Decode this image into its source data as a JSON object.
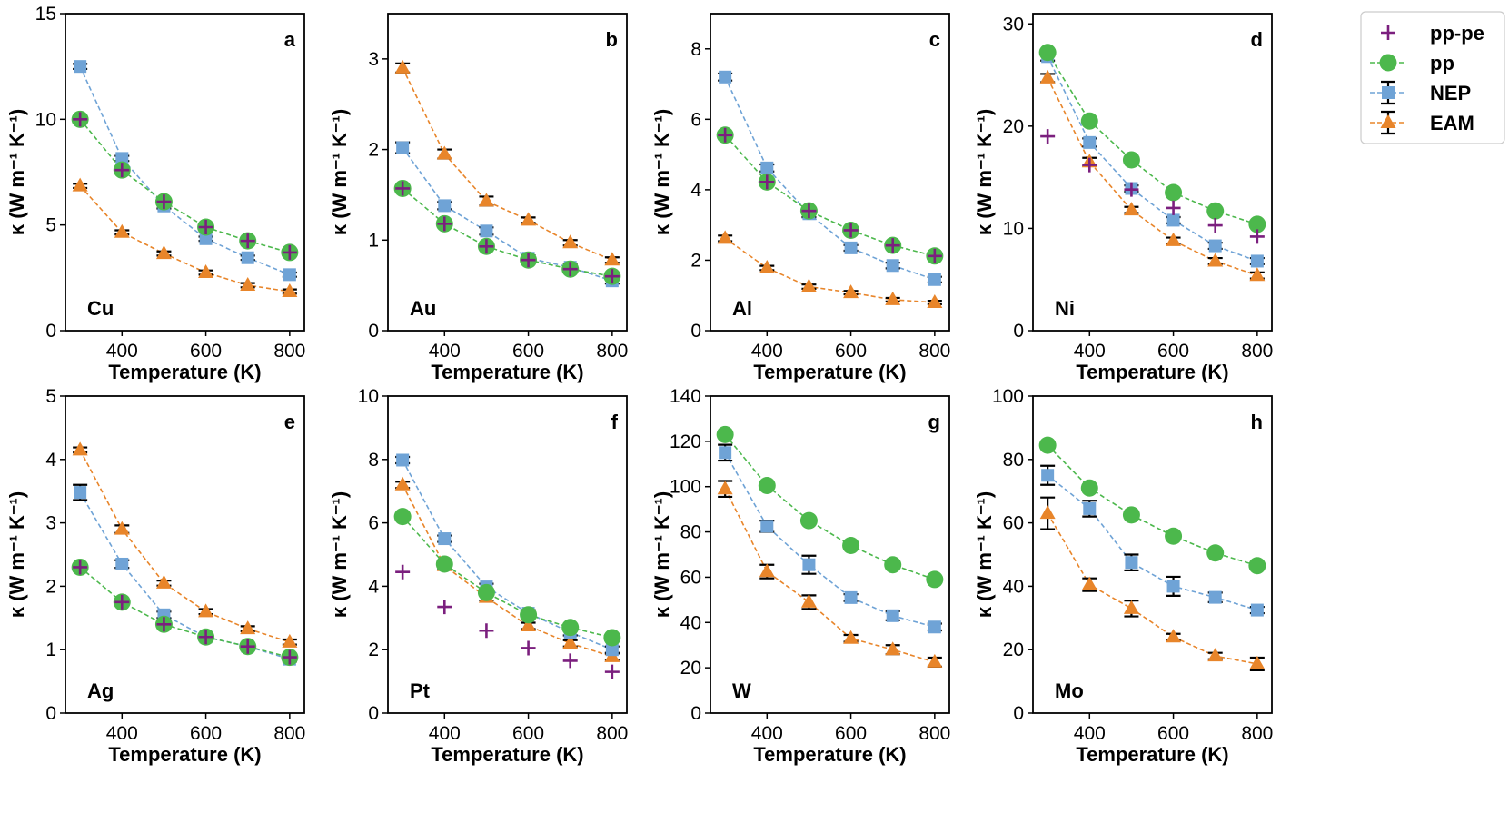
{
  "legend": [
    {
      "key": "pp-pe",
      "label": "pp-pe",
      "color": "#7b1f7e",
      "marker": "plus"
    },
    {
      "key": "pp",
      "label": "pp",
      "color": "#4cb84c",
      "marker": "circle"
    },
    {
      "key": "NEP",
      "label": "NEP",
      "color": "#6fa3d6",
      "marker": "square"
    },
    {
      "key": "EAM",
      "label": "EAM",
      "color": "#e8852a",
      "marker": "triangle"
    }
  ],
  "colors": {
    "pp": "#4cb84c",
    "NEP": "#6fa3d6",
    "EAM": "#e8852a",
    "pp-pe": "#7b1f7e"
  },
  "chart_data": [
    {
      "type": "line",
      "panel": "a",
      "element": "Cu",
      "x": [
        300,
        400,
        500,
        600,
        700,
        800
      ],
      "xlim": [
        265,
        835
      ],
      "ylim": [
        0,
        15
      ],
      "yticks": [
        0,
        5,
        10,
        15
      ],
      "xticks": [
        400,
        600,
        800
      ],
      "xticklabels": [
        "400",
        "600",
        "800"
      ],
      "yticklabels": [
        "0",
        "5",
        "10",
        "15"
      ],
      "xlabel": "Temperature (K)",
      "ylabel": "κ (W m⁻¹ K⁻¹)",
      "label_pos": "top-right",
      "series": [
        {
          "name": "pp-pe",
          "values": [
            10.0,
            7.6,
            6.1,
            4.9,
            4.25,
            3.7
          ]
        },
        {
          "name": "pp",
          "values": [
            10.0,
            7.6,
            6.1,
            4.9,
            4.25,
            3.7
          ]
        },
        {
          "name": "NEP",
          "values": [
            12.5,
            8.15,
            5.9,
            4.35,
            3.45,
            2.65
          ],
          "err": [
            0.12,
            0.12,
            0.12,
            0.1,
            0.1,
            0.1
          ]
        },
        {
          "name": "EAM",
          "values": [
            6.85,
            4.65,
            3.65,
            2.75,
            2.15,
            1.85
          ],
          "err": [
            0.1,
            0.1,
            0.1,
            0.1,
            0.1,
            0.1
          ]
        }
      ]
    },
    {
      "type": "line",
      "panel": "b",
      "element": "Au",
      "x": [
        300,
        400,
        500,
        600,
        700,
        800
      ],
      "xlim": [
        265,
        835
      ],
      "ylim": [
        0,
        3.5
      ],
      "yticks": [
        0,
        1,
        2,
        3
      ],
      "xticks": [
        400,
        600,
        800
      ],
      "xticklabels": [
        "400",
        "600",
        "800"
      ],
      "yticklabels": [
        "0",
        "1",
        "2",
        "3"
      ],
      "xlabel": "Temperature (K)",
      "ylabel": "κ (W m⁻¹ K⁻¹)",
      "label_pos": "top-right",
      "series": [
        {
          "name": "pp-pe",
          "values": [
            1.57,
            1.18,
            0.93,
            0.78,
            0.68,
            0.6
          ]
        },
        {
          "name": "pp",
          "values": [
            1.57,
            1.18,
            0.93,
            0.78,
            0.68,
            0.6
          ]
        },
        {
          "name": "NEP",
          "values": [
            2.02,
            1.38,
            1.1,
            0.8,
            0.7,
            0.55
          ],
          "err": [
            0.06,
            0.04,
            0.04,
            0.03,
            0.03,
            0.03
          ]
        },
        {
          "name": "EAM",
          "values": [
            2.9,
            1.95,
            1.43,
            1.22,
            0.97,
            0.78
          ],
          "err": [
            0.05,
            0.05,
            0.05,
            0.03,
            0.03,
            0.03
          ]
        }
      ]
    },
    {
      "type": "line",
      "panel": "c",
      "element": "Al",
      "x": [
        300,
        400,
        500,
        600,
        700,
        800
      ],
      "xlim": [
        265,
        835
      ],
      "ylim": [
        0,
        9
      ],
      "yticks": [
        0,
        2,
        4,
        6,
        8
      ],
      "xticks": [
        400,
        600,
        800
      ],
      "xticklabels": [
        "400",
        "600",
        "800"
      ],
      "yticklabels": [
        "0",
        "2",
        "4",
        "6",
        "8"
      ],
      "xlabel": "Temperature (K)",
      "ylabel": "κ (W m⁻¹ K⁻¹)",
      "label_pos": "top-right",
      "series": [
        {
          "name": "pp-pe",
          "values": [
            5.55,
            4.22,
            3.4,
            2.85,
            2.42,
            2.12
          ]
        },
        {
          "name": "pp",
          "values": [
            5.55,
            4.22,
            3.4,
            2.85,
            2.42,
            2.12
          ]
        },
        {
          "name": "NEP",
          "values": [
            7.2,
            4.62,
            3.32,
            2.35,
            1.85,
            1.45
          ],
          "err": [
            0.1,
            0.1,
            0.1,
            0.08,
            0.08,
            0.08
          ]
        },
        {
          "name": "EAM",
          "values": [
            2.62,
            1.78,
            1.25,
            1.08,
            0.88,
            0.8
          ],
          "err": [
            0.08,
            0.06,
            0.06,
            0.05,
            0.05,
            0.05
          ]
        }
      ]
    },
    {
      "type": "line",
      "panel": "d",
      "element": "Ni",
      "x": [
        300,
        400,
        500,
        600,
        700,
        800
      ],
      "xlim": [
        265,
        835
      ],
      "ylim": [
        0,
        31
      ],
      "yticks": [
        0,
        10,
        20,
        30
      ],
      "xticks": [
        400,
        600,
        800
      ],
      "xticklabels": [
        "400",
        "600",
        "800"
      ],
      "yticklabels": [
        "0",
        "10",
        "20",
        "30"
      ],
      "xlabel": "Temperature (K)",
      "ylabel": "κ (W m⁻¹ K⁻¹)",
      "label_pos": "top-right",
      "series": [
        {
          "name": "pp-pe",
          "values": [
            19.0,
            16.2,
            13.8,
            12.0,
            10.3,
            9.2
          ]
        },
        {
          "name": "pp",
          "values": [
            27.2,
            20.5,
            16.7,
            13.5,
            11.7,
            10.4
          ]
        },
        {
          "name": "NEP",
          "values": [
            26.8,
            18.4,
            13.9,
            10.8,
            8.3,
            6.8
          ],
          "err": [
            0.4,
            0.4,
            0.3,
            0.3,
            0.3,
            0.3
          ]
        },
        {
          "name": "EAM",
          "values": [
            24.7,
            16.5,
            11.8,
            8.8,
            6.8,
            5.4
          ],
          "err": [
            0.4,
            0.4,
            0.3,
            0.3,
            0.3,
            0.3
          ]
        }
      ]
    },
    {
      "type": "line",
      "panel": "e",
      "element": "Ag",
      "x": [
        300,
        400,
        500,
        600,
        700,
        800
      ],
      "xlim": [
        265,
        835
      ],
      "ylim": [
        0,
        5
      ],
      "yticks": [
        0,
        1,
        2,
        3,
        4,
        5
      ],
      "xticks": [
        400,
        600,
        800
      ],
      "xticklabels": [
        "400",
        "600",
        "800"
      ],
      "yticklabels": [
        "0",
        "1",
        "2",
        "3",
        "4",
        "5"
      ],
      "xlabel": "Temperature (K)",
      "ylabel": "κ (W m⁻¹ K⁻¹)",
      "label_pos": "top-right",
      "series": [
        {
          "name": "pp-pe",
          "values": [
            2.3,
            1.75,
            1.4,
            1.2,
            1.05,
            0.88
          ]
        },
        {
          "name": "pp",
          "values": [
            2.3,
            1.75,
            1.4,
            1.2,
            1.05,
            0.88
          ]
        },
        {
          "name": "NEP",
          "values": [
            3.48,
            2.35,
            1.55,
            1.2,
            1.05,
            0.85
          ],
          "err": [
            0.12,
            0.06,
            0.05,
            0.04,
            0.04,
            0.04
          ]
        },
        {
          "name": "EAM",
          "values": [
            4.15,
            2.9,
            2.05,
            1.6,
            1.33,
            1.12
          ],
          "err": [
            0.04,
            0.06,
            0.04,
            0.04,
            0.04,
            0.04
          ]
        }
      ]
    },
    {
      "type": "line",
      "panel": "f",
      "element": "Pt",
      "x": [
        300,
        400,
        500,
        600,
        700,
        800
      ],
      "xlim": [
        265,
        835
      ],
      "ylim": [
        0,
        10
      ],
      "yticks": [
        0,
        2,
        4,
        6,
        8,
        10
      ],
      "xticks": [
        400,
        600,
        800
      ],
      "xticklabels": [
        "400",
        "600",
        "800"
      ],
      "yticklabels": [
        "0",
        "2",
        "4",
        "6",
        "8",
        "10"
      ],
      "xlabel": "Temperature (K)",
      "ylabel": "κ (W m⁻¹ K⁻¹)",
      "label_pos": "top-right",
      "series": [
        {
          "name": "pp-pe",
          "values": [
            4.45,
            3.35,
            2.6,
            2.05,
            1.65,
            1.3
          ]
        },
        {
          "name": "pp",
          "values": [
            6.2,
            4.7,
            3.8,
            3.1,
            2.7,
            2.38
          ]
        },
        {
          "name": "NEP",
          "values": [
            7.98,
            5.5,
            3.98,
            3.15,
            2.55,
            2.0
          ],
          "err": [
            0.1,
            0.1,
            0.1,
            0.1,
            0.1,
            0.1
          ]
        },
        {
          "name": "EAM",
          "values": [
            7.2,
            4.65,
            3.65,
            2.75,
            2.2,
            1.78
          ],
          "err": [
            0.1,
            0.12,
            0.1,
            0.1,
            0.1,
            0.1
          ]
        }
      ]
    },
    {
      "type": "line",
      "panel": "g",
      "element": "W",
      "x": [
        300,
        400,
        500,
        600,
        700,
        800
      ],
      "xlim": [
        265,
        835
      ],
      "ylim": [
        0,
        140
      ],
      "yticks": [
        0,
        20,
        40,
        60,
        80,
        100,
        120,
        140
      ],
      "xticks": [
        400,
        600,
        800
      ],
      "xticklabels": [
        "400",
        "600",
        "800"
      ],
      "yticklabels": [
        "0",
        "20",
        "40",
        "60",
        "80",
        "100",
        "120",
        "140"
      ],
      "xlabel": "Temperature (K)",
      "ylabel": "κ (W m⁻¹ K⁻¹)",
      "label_pos": "top-right",
      "series": [
        {
          "name": "pp",
          "values": [
            123,
            100.5,
            85,
            74,
            65.5,
            59
          ]
        },
        {
          "name": "NEP",
          "values": [
            115,
            82.5,
            65.5,
            51,
            43,
            38
          ],
          "err": [
            3.5,
            2.5,
            4,
            1.5,
            2,
            1.5
          ]
        },
        {
          "name": "EAM",
          "values": [
            99,
            62.5,
            49,
            33,
            28,
            22.5
          ],
          "err": [
            3.5,
            3,
            3,
            1.5,
            2,
            2
          ]
        }
      ]
    },
    {
      "type": "line",
      "panel": "h",
      "element": "Mo",
      "x": [
        300,
        400,
        500,
        600,
        700,
        800
      ],
      "xlim": [
        265,
        835
      ],
      "ylim": [
        0,
        100
      ],
      "yticks": [
        0,
        20,
        40,
        60,
        80,
        100
      ],
      "xticks": [
        400,
        600,
        800
      ],
      "xticklabels": [
        "400",
        "600",
        "800"
      ],
      "yticklabels": [
        "0",
        "20",
        "40",
        "60",
        "80",
        "100"
      ],
      "xlabel": "Temperature (K)",
      "ylabel": "κ (W m⁻¹ K⁻¹)",
      "label_pos": "top-right",
      "series": [
        {
          "name": "pp",
          "values": [
            84.5,
            71,
            62.5,
            55.8,
            50.5,
            46.5
          ]
        },
        {
          "name": "NEP",
          "values": [
            75,
            64.5,
            47.5,
            40,
            36.5,
            32.5
          ],
          "err": [
            3,
            2.5,
            2.5,
            3,
            1.5,
            1
          ]
        },
        {
          "name": "EAM",
          "values": [
            63,
            40.5,
            33,
            24,
            18,
            15.5
          ],
          "err": [
            5,
            2,
            2.5,
            1,
            1,
            2
          ]
        }
      ]
    }
  ]
}
